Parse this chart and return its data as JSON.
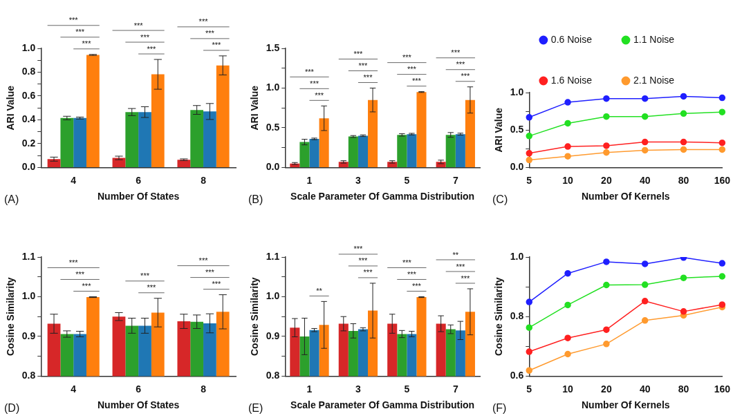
{
  "chart_data": [
    {
      "type": "bar",
      "xlabel": "Number Of States",
      "ylabel": "ARI Value",
      "categories": [
        "4",
        "6",
        "8"
      ],
      "series": [
        {
          "color": "#d62728",
          "values": [
            0.07,
            0.08,
            0.065
          ],
          "errors": [
            0.017,
            0.015,
            0.007
          ]
        },
        {
          "color": "#2ca02c",
          "values": [
            0.415,
            0.465,
            0.483
          ],
          "errors": [
            0.015,
            0.03,
            0.037
          ]
        },
        {
          "color": "#1f77b4",
          "values": [
            0.415,
            0.465,
            0.47
          ],
          "errors": [
            0.008,
            0.045,
            0.067
          ]
        },
        {
          "color": "#ff7f0e",
          "values": [
            0.945,
            0.782,
            0.857
          ],
          "errors": [
            0.004,
            0.125,
            0.08
          ]
        }
      ],
      "ylim": [
        0,
        1
      ],
      "yticks": [
        {
          "value": 0,
          "label": "0.0"
        },
        {
          "value": 0.1,
          "label": null
        },
        0.2,
        {
          "value": 0.3,
          "label": null
        },
        0.4,
        {
          "value": 0.5,
          "label": null
        },
        0.6,
        {
          "value": 0.7,
          "label": null
        },
        0.8,
        {
          "value": 0.9,
          "label": null
        },
        {
          "value": 1,
          "label": "1.0"
        }
      ],
      "annotations": [
        "(A)",
        "***",
        "***",
        "***",
        "***",
        "***",
        "***",
        "***",
        "***",
        "***"
      ]
    },
    {
      "type": "bar",
      "xlabel": "Scale Parameter Of Gamma Distribution",
      "ylabel": "ARI Value",
      "categories": [
        "1",
        "3",
        "5",
        "7"
      ],
      "series": [
        {
          "color": "#d62728",
          "values": [
            0.05,
            0.07,
            0.07,
            0.07
          ],
          "errors": [
            0.012,
            0.015,
            0.015,
            0.022
          ]
        },
        {
          "color": "#2ca02c",
          "values": [
            0.32,
            0.39,
            0.41,
            0.41
          ],
          "errors": [
            0.035,
            0.012,
            0.015,
            0.03
          ]
        },
        {
          "color": "#1f77b4",
          "values": [
            0.36,
            0.4,
            0.42,
            0.42
          ],
          "errors": [
            0.01,
            0.01,
            0.01,
            0.012
          ]
        },
        {
          "color": "#ff7f0e",
          "values": [
            0.62,
            0.85,
            0.95,
            0.85
          ],
          "errors": [
            0.155,
            0.15,
            0.005,
            0.165
          ]
        }
      ],
      "ylim": [
        0,
        1.5
      ],
      "yticks": [
        {
          "value": 0,
          "label": "0.0"
        },
        {
          "value": 0.25,
          "label": null
        },
        0.5,
        {
          "value": 0.75,
          "label": null
        },
        {
          "value": 1,
          "label": "1.0"
        },
        {
          "value": 1.25,
          "label": null
        },
        1.5
      ],
      "annotations": [
        "(B)",
        "***",
        "***",
        "***",
        "***",
        "***",
        "***",
        "***",
        "***",
        "***",
        "***",
        "***",
        "***"
      ]
    },
    {
      "type": "line",
      "xlabel": "Number Of Kernels",
      "ylabel": "ARI Value",
      "categories": [
        "5",
        "10",
        "20",
        "40",
        "80",
        "160"
      ],
      "series": [
        {
          "name": "0.6 Noise",
          "color": "#1f1fff",
          "values": [
            0.67,
            0.87,
            0.92,
            0.92,
            0.95,
            0.93
          ]
        },
        {
          "name": "1.1 Noise",
          "color": "#22e022",
          "values": [
            0.42,
            0.59,
            0.68,
            0.68,
            0.72,
            0.74
          ]
        },
        {
          "name": "1.6 Noise",
          "color": "#ff2020",
          "values": [
            0.19,
            0.28,
            0.29,
            0.34,
            0.34,
            0.33
          ]
        },
        {
          "name": "2.1 Noise",
          "color": "#ff9a2e",
          "values": [
            0.1,
            0.15,
            0.2,
            0.23,
            0.24,
            0.24
          ]
        }
      ],
      "ylim": [
        0,
        1
      ],
      "yticks": [
        {
          "value": 0,
          "label": "0.0"
        },
        {
          "value": 0.25,
          "label": null
        },
        0.5,
        {
          "value": 0.75,
          "label": null
        },
        {
          "value": 1,
          "label": "1.0"
        }
      ],
      "marker": "circle",
      "legend": "top",
      "annotations": [
        "(C)"
      ]
    },
    {
      "type": "bar",
      "xlabel": "Number Of States",
      "ylabel": "Cosine Similarity",
      "categories": [
        "4",
        "6",
        "8"
      ],
      "series": [
        {
          "color": "#d62728",
          "values": [
            0.932,
            0.95,
            0.938
          ],
          "errors": [
            0.024,
            0.01,
            0.018
          ]
        },
        {
          "color": "#2ca02c",
          "values": [
            0.906,
            0.927,
            0.937
          ],
          "errors": [
            0.008,
            0.019,
            0.017
          ]
        },
        {
          "color": "#1f77b4",
          "values": [
            0.906,
            0.927,
            0.933
          ],
          "errors": [
            0.007,
            0.019,
            0.024
          ]
        },
        {
          "color": "#ff7f0e",
          "values": [
            0.999,
            0.96,
            0.962
          ],
          "errors": [
            0.001,
            0.036,
            0.043
          ]
        }
      ],
      "ylim": [
        0.8,
        1.1
      ],
      "yticks": [
        0.8,
        {
          "value": 0.85,
          "label": null
        },
        0.9,
        {
          "value": 0.95,
          "label": null
        },
        {
          "value": 1,
          "label": "1.0"
        },
        {
          "value": 1.05,
          "label": null
        },
        1.1
      ],
      "annotations": [
        "(D)",
        "***",
        "***",
        "***",
        "***",
        "***",
        "***",
        "***",
        "***"
      ]
    },
    {
      "type": "bar",
      "xlabel": "Scale Parameter Of Gamma Distribution",
      "ylabel": "Cosine Similarity",
      "categories": [
        "1",
        "3",
        "5",
        "7"
      ],
      "series": [
        {
          "color": "#d62728",
          "values": [
            0.922,
            0.932,
            0.932,
            0.932
          ],
          "errors": [
            0.023,
            0.018,
            0.024,
            0.02
          ]
        },
        {
          "color": "#2ca02c",
          "values": [
            0.9,
            0.914,
            0.906,
            0.918
          ],
          "errors": [
            0.046,
            0.018,
            0.009,
            0.011
          ]
        },
        {
          "color": "#1f77b4",
          "values": [
            0.916,
            0.918,
            0.906,
            0.915
          ],
          "errors": [
            0.004,
            0.004,
            0.007,
            0.023
          ]
        },
        {
          "color": "#ff7f0e",
          "values": [
            0.929,
            0.965,
            0.999,
            0.962
          ],
          "errors": [
            0.059,
            0.069,
            0.001,
            0.058
          ]
        }
      ],
      "ylim": [
        0.8,
        1.1
      ],
      "yticks": [
        0.8,
        {
          "value": 0.85,
          "label": null
        },
        0.9,
        {
          "value": 0.95,
          "label": null
        },
        {
          "value": 1,
          "label": "1.0"
        },
        {
          "value": 1.05,
          "label": null
        },
        1.1
      ],
      "annotations": [
        "(E)",
        "**",
        "***",
        "***",
        "***",
        "***",
        "***",
        "***",
        "**",
        "***",
        "***"
      ]
    },
    {
      "type": "line",
      "xlabel": "Number Of Kernels",
      "ylabel": "Cosine Similarity",
      "categories": [
        "5",
        "10",
        "20",
        "40",
        "80",
        "160"
      ],
      "series": [
        {
          "color": "#1f1fff",
          "values": [
            0.849,
            0.945,
            0.984,
            0.977,
            0.998,
            0.979
          ]
        },
        {
          "color": "#22e022",
          "values": [
            0.763,
            0.839,
            0.906,
            0.907,
            0.93,
            0.935
          ]
        },
        {
          "color": "#ff2020",
          "values": [
            0.682,
            0.728,
            0.756,
            0.852,
            0.817,
            0.84
          ]
        },
        {
          "color": "#ff9a2e",
          "values": [
            0.619,
            0.674,
            0.708,
            0.787,
            0.804,
            0.832
          ]
        }
      ],
      "ylim": [
        0.6,
        1
      ],
      "yticks": [
        0.6,
        {
          "value": 0.7,
          "label": null
        },
        0.8,
        {
          "value": 0.9,
          "label": null
        },
        {
          "value": 1,
          "label": "1.0"
        }
      ],
      "marker": "circle",
      "annotations": [
        "(F)"
      ]
    }
  ]
}
